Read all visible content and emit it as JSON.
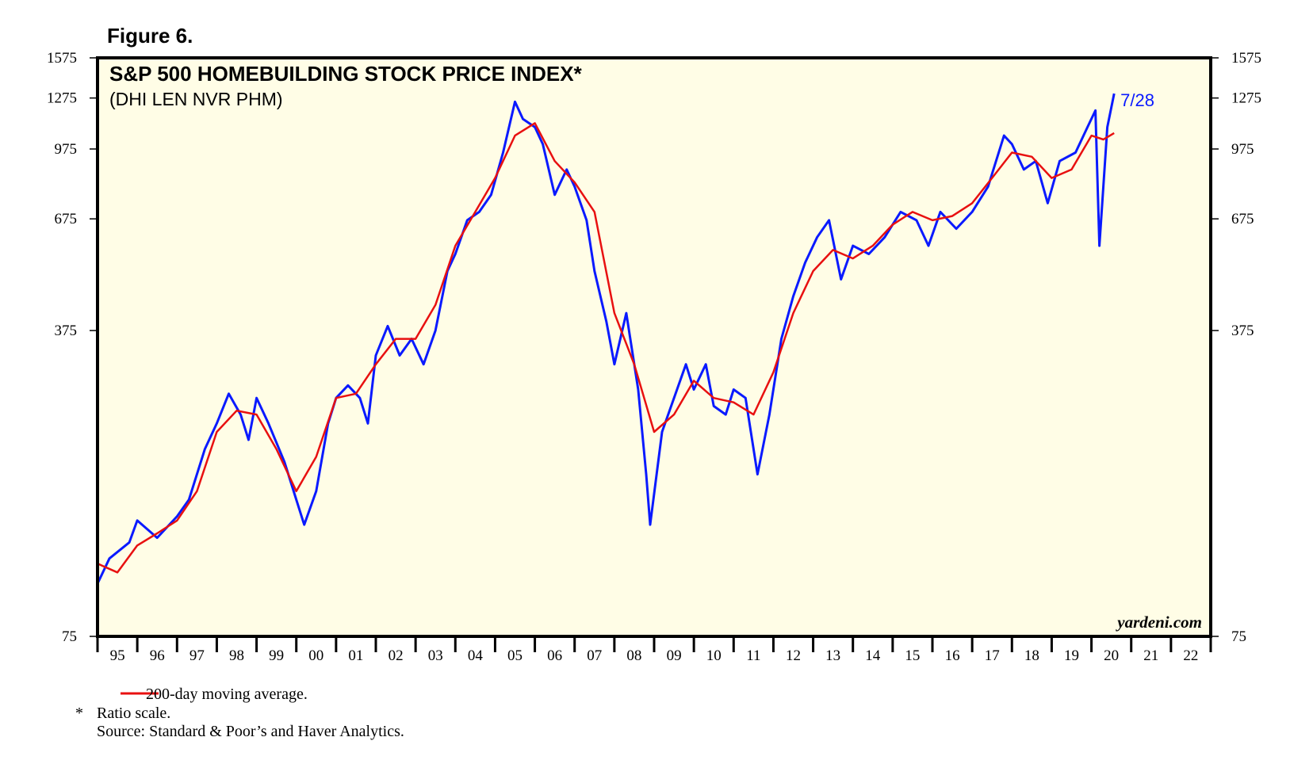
{
  "figure_label": "Figure 6.",
  "chart_data": {
    "type": "line",
    "title": "S&P 500 HOMEBUILDING STOCK PRICE INDEX*",
    "subtitle": "(DHI LEN NVR PHM)",
    "annotation": "7/28",
    "watermark": "yardeni.com",
    "log_scale": true,
    "ylim": [
      75,
      1575
    ],
    "yticks": [
      75,
      375,
      675,
      975,
      1275,
      1575
    ],
    "xlim": [
      1995,
      2023
    ],
    "xticks": [
      {
        "value": 1995,
        "label": "95"
      },
      {
        "value": 1996,
        "label": "96"
      },
      {
        "value": 1997,
        "label": "97"
      },
      {
        "value": 1998,
        "label": "98"
      },
      {
        "value": 1999,
        "label": "99"
      },
      {
        "value": 2000,
        "label": "00"
      },
      {
        "value": 2001,
        "label": "01"
      },
      {
        "value": 2002,
        "label": "02"
      },
      {
        "value": 2003,
        "label": "03"
      },
      {
        "value": 2004,
        "label": "04"
      },
      {
        "value": 2005,
        "label": "05"
      },
      {
        "value": 2006,
        "label": "06"
      },
      {
        "value": 2007,
        "label": "07"
      },
      {
        "value": 2008,
        "label": "08"
      },
      {
        "value": 2009,
        "label": "09"
      },
      {
        "value": 2010,
        "label": "10"
      },
      {
        "value": 2011,
        "label": "11"
      },
      {
        "value": 2012,
        "label": "12"
      },
      {
        "value": 2013,
        "label": "13"
      },
      {
        "value": 2014,
        "label": "14"
      },
      {
        "value": 2015,
        "label": "15"
      },
      {
        "value": 2016,
        "label": "16"
      },
      {
        "value": 2017,
        "label": "17"
      },
      {
        "value": 2018,
        "label": "18"
      },
      {
        "value": 2019,
        "label": "19"
      },
      {
        "value": 2020,
        "label": "20"
      },
      {
        "value": 2021,
        "label": "21"
      },
      {
        "value": 2022,
        "label": "22"
      }
    ],
    "series": [
      {
        "color": "#0a1aff",
        "x": [
          1995.0,
          1995.3,
          1995.8,
          1996.0,
          1996.5,
          1997.0,
          1997.3,
          1997.7,
          1998.0,
          1998.3,
          1998.6,
          1998.8,
          1999.0,
          1999.3,
          1999.7,
          2000.0,
          2000.2,
          2000.5,
          2000.8,
          2001.0,
          2001.3,
          2001.6,
          2001.8,
          2002.0,
          2002.3,
          2002.6,
          2002.9,
          2003.2,
          2003.5,
          2003.8,
          2004.0,
          2004.3,
          2004.6,
          2004.9,
          2005.2,
          2005.5,
          2005.7,
          2006.0,
          2006.2,
          2006.5,
          2006.8,
          2007.0,
          2007.3,
          2007.5,
          2007.8,
          2008.0,
          2008.3,
          2008.6,
          2008.8,
          2008.9,
          2009.2,
          2009.5,
          2009.8,
          2010.0,
          2010.3,
          2010.5,
          2010.8,
          2011.0,
          2011.3,
          2011.6,
          2011.9,
          2012.2,
          2012.5,
          2012.8,
          2013.1,
          2013.4,
          2013.7,
          2014.0,
          2014.4,
          2014.8,
          2015.2,
          2015.6,
          2015.9,
          2016.2,
          2016.6,
          2017.0,
          2017.4,
          2017.8,
          2018.0,
          2018.3,
          2018.6,
          2018.9,
          2019.2,
          2019.6,
          2019.9,
          2020.1,
          2020.2,
          2020.4,
          2020.57
        ],
        "values": [
          99,
          113,
          123,
          138,
          126,
          141,
          154,
          201,
          230,
          269,
          241,
          211,
          263,
          230,
          188,
          154,
          135,
          161,
          230,
          263,
          281,
          263,
          230,
          329,
          384,
          329,
          359,
          314,
          375,
          513,
          561,
          670,
          700,
          766,
          957,
          1250,
          1142,
          1094,
          1000,
          766,
          875,
          800,
          670,
          513,
          393,
          314,
          411,
          275,
          176,
          135,
          220,
          263,
          314,
          275,
          314,
          252,
          241,
          275,
          263,
          176,
          241,
          359,
          449,
          536,
          613,
          670,
          491,
          586,
          561,
          613,
          700,
          670,
          586,
          700,
          641,
          700,
          800,
          1046,
          1000,
          875,
          915,
          733,
          915,
          957,
          1094,
          1194,
          586,
          1094,
          1305
        ]
      },
      {
        "name": "200-day moving average.",
        "color": "#e81010",
        "x": [
          1995.0,
          1995.5,
          1996.0,
          1996.5,
          1997.0,
          1997.5,
          1998.0,
          1998.5,
          1999.0,
          1999.5,
          2000.0,
          2000.5,
          2001.0,
          2001.5,
          2002.0,
          2002.5,
          2003.0,
          2003.5,
          2004.0,
          2004.5,
          2005.0,
          2005.5,
          2006.0,
          2006.5,
          2007.0,
          2007.5,
          2008.0,
          2008.5,
          2009.0,
          2009.5,
          2010.0,
          2010.5,
          2011.0,
          2011.5,
          2012.0,
          2012.5,
          2013.0,
          2013.5,
          2014.0,
          2014.5,
          2015.0,
          2015.5,
          2016.0,
          2016.5,
          2017.0,
          2017.5,
          2018.0,
          2018.5,
          2019.0,
          2019.5,
          2020.0,
          2020.3,
          2020.57
        ],
        "values": [
          110,
          105,
          121,
          129,
          138,
          161,
          220,
          246,
          241,
          201,
          161,
          193,
          263,
          269,
          314,
          359,
          359,
          429,
          586,
          700,
          837,
          1046,
          1117,
          915,
          818,
          700,
          411,
          314,
          220,
          241,
          288,
          263,
          257,
          241,
          301,
          411,
          513,
          573,
          548,
          586,
          655,
          700,
          670,
          685,
          733,
          837,
          957,
          936,
          837,
          875,
          1046,
          1025,
          1060
        ]
      }
    ]
  },
  "notes": {
    "asterisk": "*",
    "ratio": "Ratio scale.",
    "source": "Source: Standard & Poor’s and Haver Analytics."
  }
}
